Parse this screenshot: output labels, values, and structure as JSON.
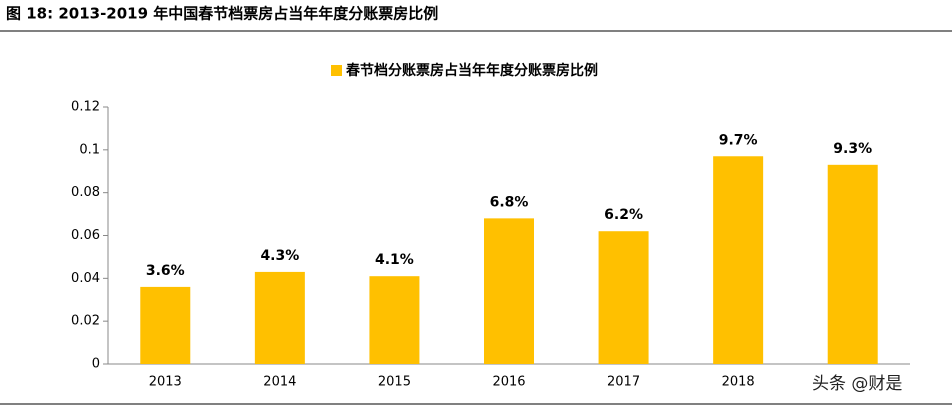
{
  "chart_data": {
    "type": "bar",
    "title": "图 18: 2013-2019 年中国春节档票房占当年年度分账票房比例",
    "watermark": "头条 @财是",
    "categories": [
      "2013",
      "2014",
      "2015",
      "2016",
      "2017",
      "2018",
      null
    ],
    "series": [
      {
        "name": "春节档分账票房占当年年度分账票房比例",
        "color": "#ffc000",
        "values": [
          0.036,
          0.043,
          0.041,
          0.068,
          0.062,
          0.097,
          0.093
        ],
        "value_labels": [
          "3.6%",
          "4.3%",
          "4.1%",
          "6.8%",
          "6.2%",
          "9.7%",
          "9.3%"
        ]
      }
    ],
    "ylim": [
      0,
      0.12
    ],
    "yticks": [
      0,
      0.02,
      0.04,
      0.06,
      0.08,
      0.1,
      0.12
    ]
  }
}
